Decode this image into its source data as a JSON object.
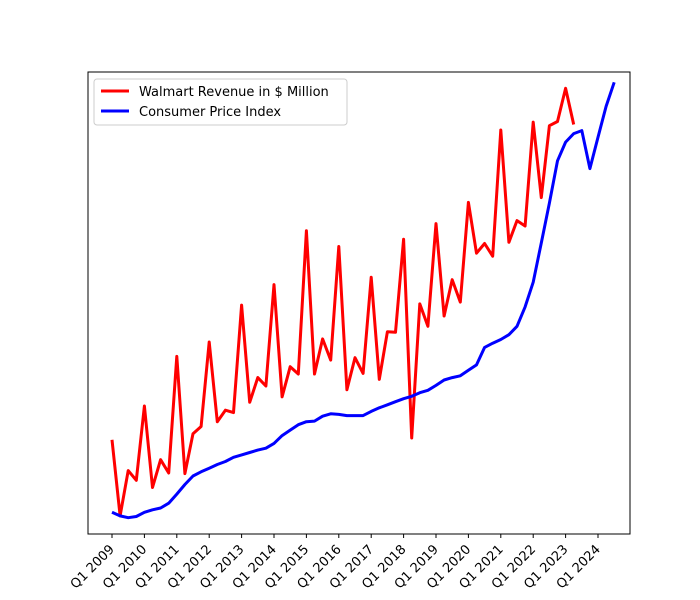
{
  "chart_data": {
    "type": "line",
    "title": "",
    "xlabel": "",
    "ylabel": "",
    "y_axis_ticks_shown": false,
    "grid": false,
    "legend_position": "upper-left",
    "x_tick_labels": [
      "Q1 2009",
      "Q1 2010",
      "Q1 2011",
      "Q1 2012",
      "Q1 2013",
      "Q1 2014",
      "Q1 2015",
      "Q1 2016",
      "Q1 2017",
      "Q1 2018",
      "Q1 2019",
      "Q1 2020",
      "Q1 2021",
      "Q1 2022",
      "Q1 2023",
      "Q1 2024"
    ],
    "quarter_start": "Q1 2009",
    "series": [
      {
        "name": "Walmart Revenue in $ Million",
        "color": "#ff0000",
        "values": [
          99.6,
          87.0,
          94.5,
          92.9,
          105.2,
          91.7,
          96.3,
          94.1,
          113.4,
          94.0,
          100.6,
          101.8,
          115.8,
          102.6,
          104.5,
          104.1,
          121.9,
          105.8,
          109.9,
          108.5,
          125.3,
          106.7,
          111.7,
          110.5,
          134.2,
          110.5,
          116.3,
          112.8,
          131.6,
          107.9,
          113.2,
          110.6,
          126.5,
          109.6,
          117.5,
          117.4,
          132.8,
          99.9,
          122.1,
          118.4,
          135.4,
          120.1,
          126.1,
          122.4,
          138.9,
          130.5,
          132.1,
          130.0,
          150.9,
          132.3,
          135.9,
          135.0,
          152.2,
          139.7,
          151.6,
          152.3,
          157.8,
          151.8
        ]
      },
      {
        "name": "Consumer Price Index",
        "color": "#0000ff",
        "values": [
          87.6,
          87.0,
          86.7,
          86.9,
          87.6,
          88.0,
          88.3,
          89.1,
          90.6,
          92.2,
          93.6,
          94.3,
          94.9,
          95.5,
          96.0,
          96.7,
          97.1,
          97.5,
          97.9,
          98.2,
          99.0,
          100.3,
          101.2,
          102.1,
          102.6,
          102.7,
          103.5,
          103.9,
          103.8,
          103.6,
          103.6,
          103.6,
          104.3,
          104.9,
          105.4,
          105.9,
          106.4,
          106.8,
          107.4,
          107.8,
          108.6,
          109.5,
          109.9,
          110.2,
          111.1,
          112.0,
          114.9,
          115.6,
          116.2,
          117.0,
          118.4,
          121.6,
          125.7,
          132.2,
          138.8,
          145.8,
          148.9,
          150.3,
          150.8,
          144.5,
          149.7,
          154.8,
          158.8
        ]
      }
    ],
    "ylim": [
      84.0,
      160.5
    ]
  }
}
